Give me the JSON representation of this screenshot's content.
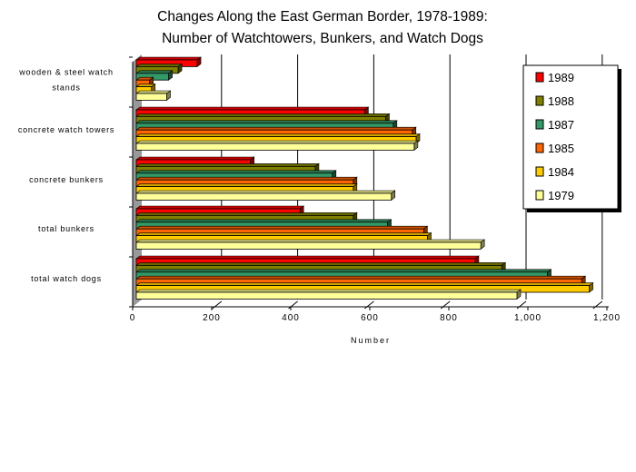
{
  "chart_data": {
    "type": "bar",
    "orientation": "horizontal",
    "title": "Changes Along the East German Border, 1978-1989:",
    "subtitle": "Number of Watchtowers, Bunkers, and Watch Dogs",
    "xlabel": "Number",
    "ylabel": "",
    "xlim": [
      0,
      1200
    ],
    "xticks": [
      "0",
      "200",
      "400",
      "600",
      "800",
      "1,000",
      "1,200"
    ],
    "xtick_values": [
      0,
      200,
      400,
      600,
      800,
      1000,
      1200
    ],
    "grid": true,
    "legend_position": "right",
    "categories": [
      "wooden & steel watch stands",
      "concrete watch towers",
      "concrete bunkers",
      "total bunkers",
      "total watch dogs"
    ],
    "category_lines": [
      [
        "wooden & steel watch",
        "stands"
      ],
      [
        "concrete watch towers"
      ],
      [
        "concrete bunkers"
      ],
      [
        "total bunkers"
      ],
      [
        "total watch dogs"
      ]
    ],
    "series": [
      {
        "name": "1989",
        "color": "#ff0000",
        "values": [
          160,
          600,
          300,
          430,
          890
        ]
      },
      {
        "name": "1988",
        "color": "#808000",
        "values": [
          110,
          655,
          470,
          570,
          960
        ]
      },
      {
        "name": "1987",
        "color": "#339966",
        "values": [
          85,
          675,
          515,
          660,
          1080
        ]
      },
      {
        "name": "1985",
        "color": "#ff6600",
        "values": [
          35,
          725,
          570,
          755,
          1170
        ]
      },
      {
        "name": "1984",
        "color": "#ffcc00",
        "values": [
          40,
          735,
          570,
          765,
          1190
        ]
      },
      {
        "name": "1979",
        "color": "#ffff99",
        "values": [
          80,
          730,
          670,
          905,
          1000
        ]
      }
    ]
  }
}
